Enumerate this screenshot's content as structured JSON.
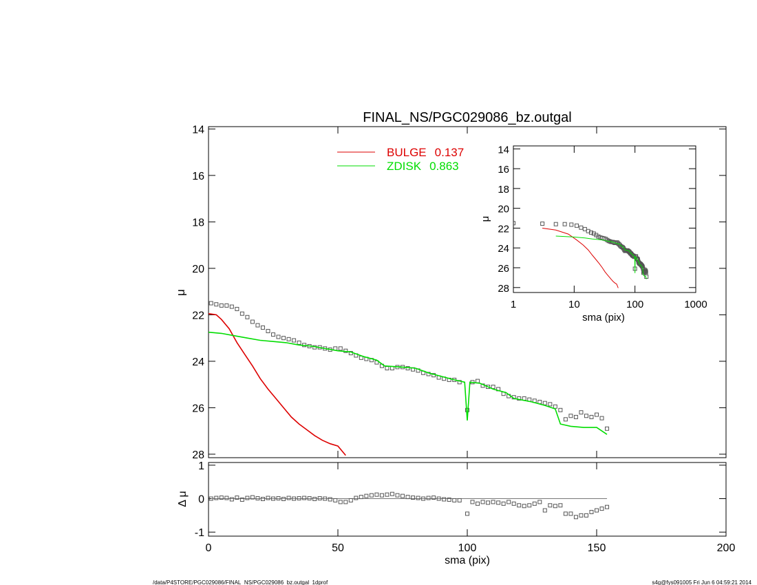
{
  "chart_data": [
    {
      "type": "line",
      "title": "FINAL_NS/PGC029086_bz.outgal",
      "ylabel": "μ",
      "xlim": [
        0,
        200
      ],
      "xticks": [
        0,
        50,
        100,
        150,
        200
      ],
      "ylim": [
        28.15,
        13.9
      ],
      "yticks": [
        14,
        16,
        18,
        20,
        22,
        24,
        26,
        28
      ],
      "series": [
        {
          "style": "points",
          "color": "#555555",
          "x": [
            1,
            3,
            5,
            7,
            9,
            11,
            13,
            15,
            17,
            19,
            21,
            23,
            25,
            27,
            29,
            31,
            33,
            35,
            37,
            39,
            41,
            43,
            45,
            47,
            49,
            51,
            53,
            55,
            57,
            59,
            61,
            63,
            65,
            67,
            69,
            71,
            73,
            75,
            77,
            79,
            81,
            83,
            85,
            87,
            89,
            91,
            93,
            95,
            97,
            100,
            102,
            104,
            106,
            108,
            110,
            112,
            114,
            116,
            118,
            120,
            122,
            124,
            126,
            128,
            130,
            132,
            134,
            136,
            138,
            140,
            142,
            144,
            146,
            148,
            150,
            152,
            154
          ],
          "values": [
            21.5,
            21.55,
            21.6,
            21.6,
            21.65,
            21.75,
            21.95,
            22.1,
            22.3,
            22.45,
            22.55,
            22.7,
            22.85,
            22.95,
            23.0,
            23.05,
            23.1,
            23.2,
            23.3,
            23.35,
            23.4,
            23.4,
            23.45,
            23.5,
            23.45,
            23.45,
            23.55,
            23.65,
            23.75,
            23.85,
            23.9,
            23.95,
            24.05,
            24.2,
            24.3,
            24.3,
            24.25,
            24.25,
            24.3,
            24.35,
            24.4,
            24.5,
            24.55,
            24.6,
            24.7,
            24.75,
            24.8,
            24.8,
            24.9,
            26.1,
            24.9,
            24.85,
            25.05,
            25.1,
            25.1,
            25.2,
            25.4,
            25.5,
            25.55,
            25.6,
            25.6,
            25.65,
            25.7,
            25.75,
            25.8,
            25.85,
            25.95,
            26.1,
            26.5,
            26.35,
            26.4,
            26.2,
            26.35,
            26.4,
            26.3,
            26.45,
            26.9
          ]
        },
        {
          "style": "line",
          "name": "BULGE",
          "fraction": 0.137,
          "color": "#dd0000",
          "x": [
            0,
            3,
            5,
            8,
            11,
            14,
            17,
            20,
            23,
            26,
            29,
            32,
            35,
            38,
            41,
            44,
            47,
            50,
            53
          ],
          "values": [
            21.95,
            22.0,
            22.2,
            22.6,
            23.2,
            23.7,
            24.2,
            24.75,
            25.2,
            25.6,
            26.0,
            26.4,
            26.7,
            26.95,
            27.2,
            27.4,
            27.55,
            27.65,
            28.05
          ]
        },
        {
          "style": "line",
          "name": "ZDISK",
          "fraction": 0.863,
          "color": "#00dd00",
          "x": [
            0,
            5,
            10,
            15,
            20,
            25,
            30,
            35,
            40,
            45,
            50,
            55,
            60,
            65,
            68,
            75,
            80,
            85,
            90,
            95,
            99,
            100,
            101,
            105,
            110,
            115,
            118,
            125,
            130,
            134,
            136,
            140,
            145,
            150,
            154
          ],
          "values": [
            22.75,
            22.8,
            22.9,
            23.0,
            23.1,
            23.15,
            23.2,
            23.3,
            23.35,
            23.45,
            23.55,
            23.6,
            23.8,
            23.95,
            24.2,
            24.25,
            24.3,
            24.5,
            24.65,
            24.8,
            24.9,
            26.55,
            24.9,
            24.95,
            25.2,
            25.35,
            25.6,
            25.75,
            25.9,
            26.05,
            26.7,
            26.8,
            26.85,
            26.85,
            27.15
          ]
        }
      ]
    },
    {
      "type": "scatter",
      "ylabel": "Δ μ",
      "xlabel": "sma (pix)",
      "xlim": [
        0,
        200
      ],
      "xticks": [
        0,
        50,
        100,
        150,
        200
      ],
      "ylim": [
        -1.12,
        1.08
      ],
      "yticks": [
        -1,
        0,
        1
      ],
      "hline": 0,
      "color": "#555555",
      "x": [
        1,
        3,
        5,
        7,
        9,
        11,
        13,
        15,
        17,
        19,
        21,
        23,
        25,
        27,
        29,
        31,
        33,
        35,
        37,
        39,
        41,
        43,
        45,
        47,
        49,
        51,
        53,
        55,
        57,
        59,
        61,
        63,
        65,
        67,
        69,
        71,
        73,
        75,
        77,
        79,
        81,
        83,
        85,
        87,
        89,
        91,
        93,
        95,
        97,
        100,
        102,
        104,
        106,
        108,
        110,
        112,
        114,
        116,
        118,
        120,
        122,
        124,
        126,
        128,
        130,
        132,
        134,
        136,
        138,
        140,
        142,
        144,
        146,
        148,
        150,
        152,
        154
      ],
      "values": [
        0,
        0.02,
        0.03,
        0.02,
        -0.02,
        0.03,
        -0.03,
        0.02,
        0.04,
        0.01,
        -0.01,
        0.02,
        0,
        0.01,
        -0.01,
        0.02,
        0,
        0.01,
        0.02,
        0.01,
        -0.01,
        0.01,
        0,
        -0.02,
        -0.05,
        -0.1,
        -0.1,
        -0.05,
        0.02,
        0.05,
        0.08,
        0.1,
        0.12,
        0.1,
        0.12,
        0.14,
        0.1,
        0.08,
        0.05,
        0.03,
        0.02,
        0,
        0.02,
        0.03,
        0,
        -0.02,
        -0.03,
        -0.05,
        -0.05,
        -0.45,
        -0.1,
        -0.15,
        -0.1,
        -0.12,
        -0.1,
        -0.12,
        -0.15,
        -0.1,
        -0.15,
        -0.2,
        -0.22,
        -0.2,
        -0.15,
        -0.1,
        -0.35,
        -0.2,
        -0.22,
        -0.2,
        -0.45,
        -0.45,
        -0.55,
        -0.5,
        -0.5,
        -0.4,
        -0.35,
        -0.3,
        -0.25
      ]
    },
    {
      "type": "line",
      "log_x": true,
      "xlabel": "sma (pix)",
      "ylabel": "μ",
      "xlim": [
        1,
        1000
      ],
      "xticks": [
        1,
        10,
        100,
        1000
      ],
      "ylim": [
        28.5,
        13.7
      ],
      "yticks": [
        14,
        16,
        18,
        20,
        22,
        24,
        26,
        28
      ]
    }
  ],
  "footer_left": "/data/P4STORE/PGC029086/FINAL_NS/PGC029086_bz.outgal_1dprof",
  "footer_right": "s4g@fys091005  Fri Jun  6 04:59:21 2014"
}
